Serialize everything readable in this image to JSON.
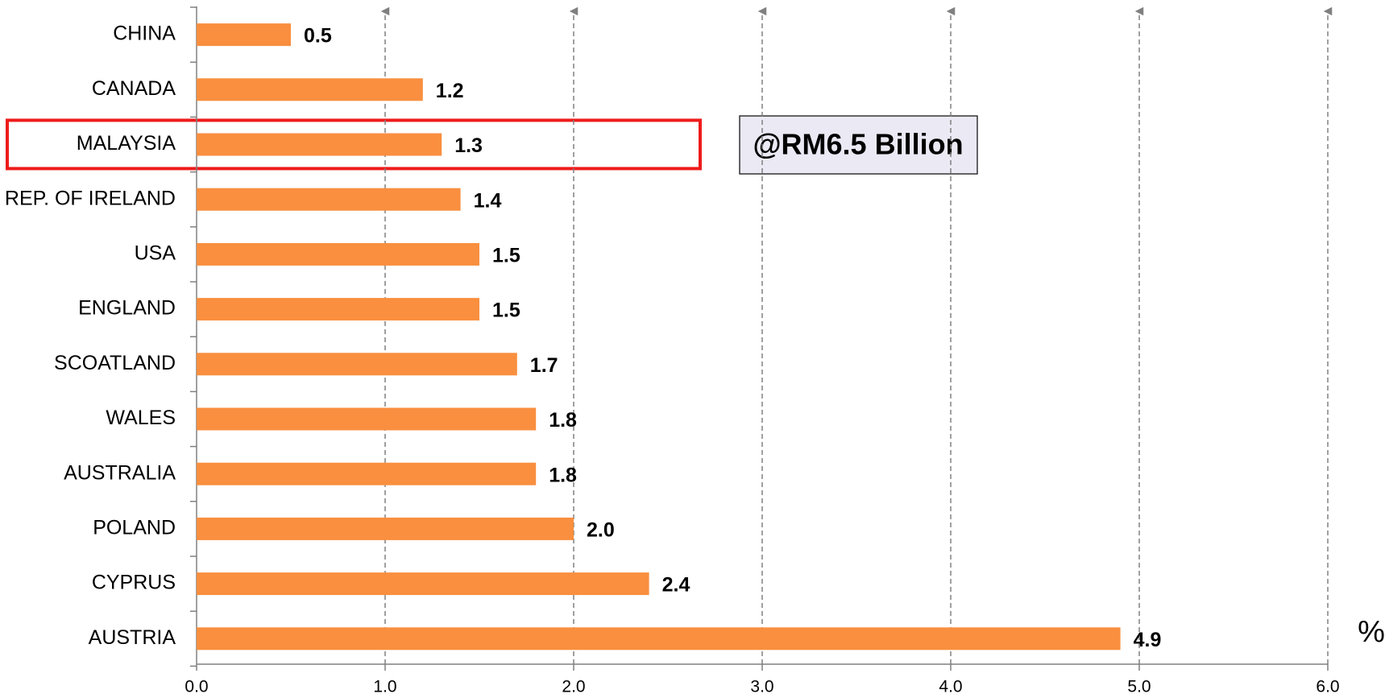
{
  "chart_data": {
    "type": "bar",
    "orientation": "horizontal",
    "categories": [
      "CHINA",
      "CANADA",
      "MALAYSIA",
      "REP. OF IRELAND",
      "USA",
      "ENGLAND",
      "SCOATLAND",
      "WALES",
      "AUSTRALIA",
      "POLAND",
      "CYPRUS",
      "AUSTRIA"
    ],
    "values": [
      0.5,
      1.2,
      1.3,
      1.4,
      1.5,
      1.5,
      1.7,
      1.8,
      1.8,
      2.0,
      2.4,
      4.9
    ],
    "value_labels": [
      "0.5",
      "1.2",
      "1.3",
      "1.4",
      "1.5",
      "1.5",
      "1.7",
      "1.8",
      "1.8",
      "2.0",
      "2.4",
      "4.9"
    ],
    "color": "#f98f3f",
    "xlim": [
      0,
      6
    ],
    "xticks": [
      {
        "value": 0,
        "label": "0.0"
      },
      {
        "value": 1,
        "label": "1.0"
      },
      {
        "value": 2,
        "label": "2.0"
      },
      {
        "value": 3,
        "label": "3.0"
      },
      {
        "value": 4,
        "label": "4.0"
      },
      {
        "value": 5,
        "label": "5.0"
      },
      {
        "value": 6,
        "label": "6.0"
      }
    ],
    "x_axis_label": "%",
    "annotation": "@RM6.5 Billion",
    "grid": true
  }
}
